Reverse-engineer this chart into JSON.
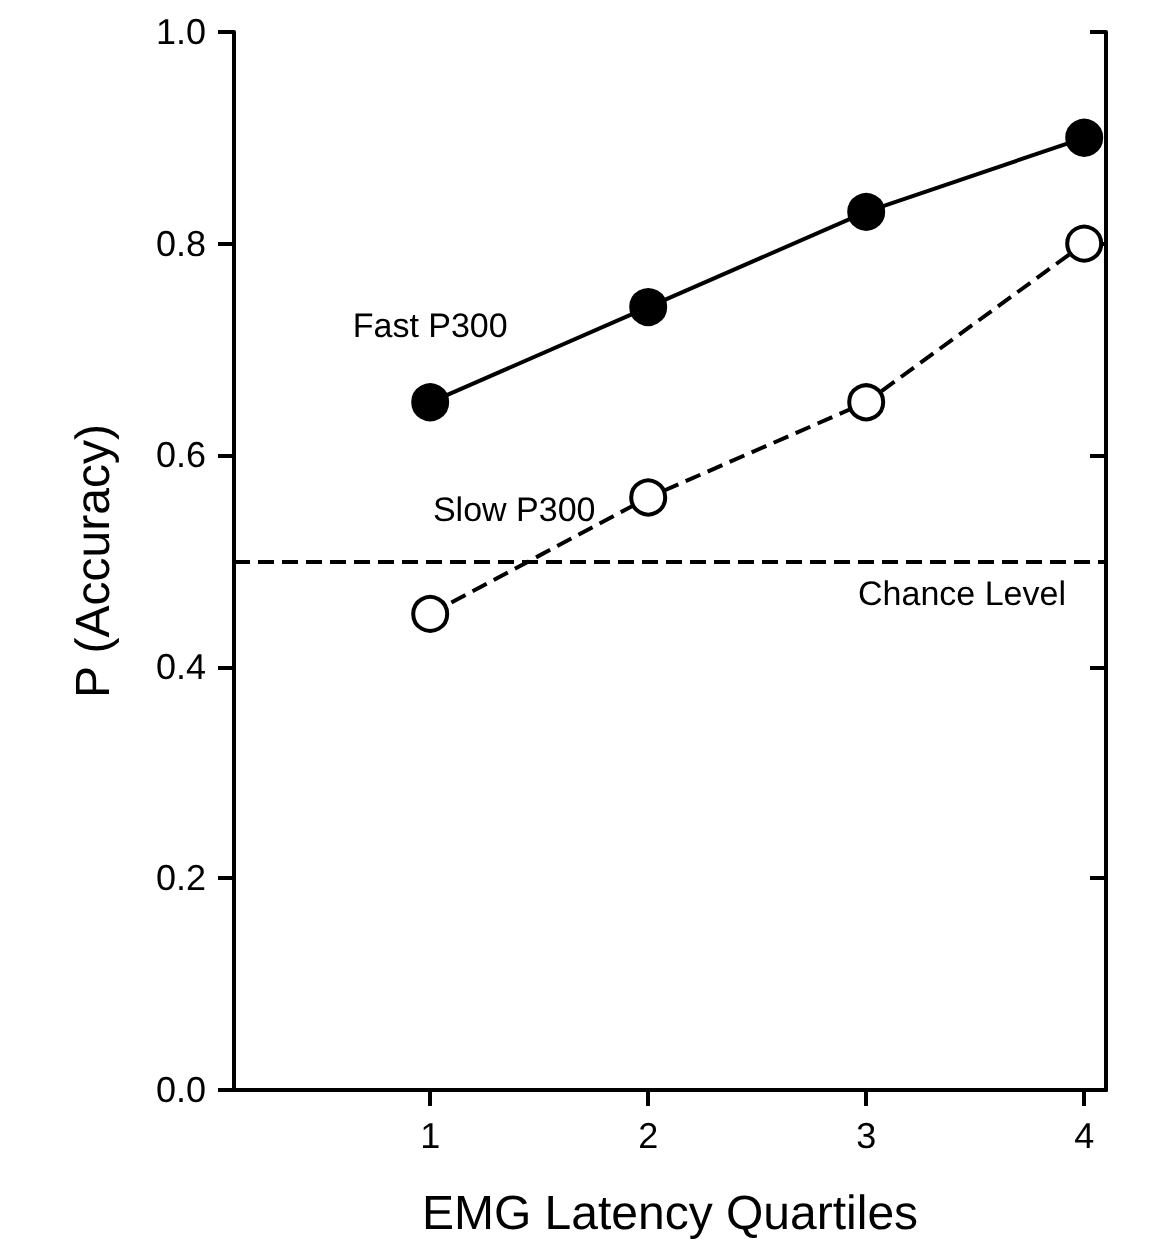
{
  "chart_data": {
    "type": "line",
    "xlabel": "EMG Latency Quartiles",
    "ylabel": "P (Accuracy)",
    "x": [
      1,
      2,
      3,
      4
    ],
    "series": [
      {
        "name": "Fast P300",
        "color": "#000000",
        "values": [
          0.65,
          0.74,
          0.83,
          0.9
        ],
        "line_style": "solid",
        "marker": "circle"
      },
      {
        "name": "Slow P300",
        "color": "#000000",
        "values": [
          0.45,
          0.56,
          0.65,
          0.8
        ],
        "line_style": "dashed",
        "marker": "open circle"
      }
    ],
    "xlim": [
      0.1,
      4.1
    ],
    "xticks": [
      1,
      2,
      3,
      4
    ],
    "ylim": [
      0,
      1
    ],
    "yticks": [
      {
        "value": 0,
        "label": "0.0"
      },
      {
        "value": 0.2,
        "label": "0.2"
      },
      {
        "value": 0.4,
        "label": "0.4"
      },
      {
        "value": 0.6,
        "label": "0.6"
      },
      {
        "value": 0.8,
        "label": "0.8"
      },
      {
        "value": 1,
        "label": "1.0"
      }
    ],
    "ref_lines": [
      {
        "axis": "y",
        "value": 0.5,
        "label": "Chance Level",
        "line_style": "dashed",
        "color": "#000000"
      }
    ],
    "grid": false,
    "legend": false
  }
}
